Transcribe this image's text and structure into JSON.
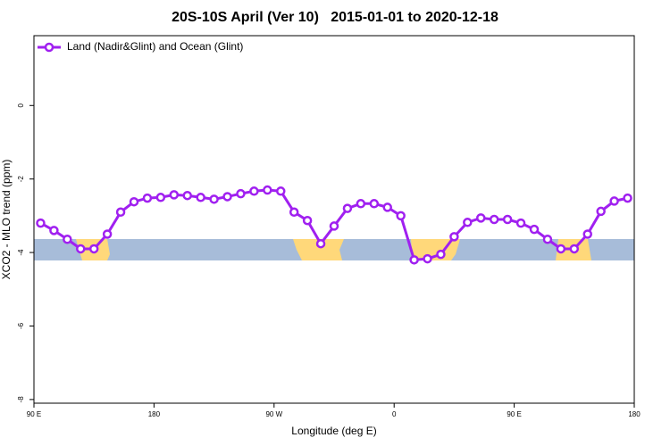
{
  "chart_data": {
    "type": "line",
    "title": "20S-10S April (Ver 10)   2015-01-01 to 2020-12-18",
    "xlabel": "Longitude (deg E)",
    "ylabel": "XCO2 - MLO trend (ppm)",
    "x": [
      95,
      105,
      115,
      125,
      135,
      145,
      155,
      165,
      175,
      185,
      195,
      205,
      215,
      225,
      235,
      245,
      255,
      265,
      275,
      285,
      295,
      305,
      315,
      325,
      335,
      345,
      355,
      365,
      375,
      385,
      395,
      405,
      415,
      425,
      435,
      445,
      455,
      465,
      475,
      485,
      495,
      505,
      515,
      525,
      535
    ],
    "series": [
      {
        "name": "Land (Nadir&Glint) and Ocean (Glint)",
        "color": "#a020f0",
        "values": [
          -3.2,
          -3.4,
          -3.64,
          -3.9,
          -3.9,
          -3.5,
          -2.9,
          -2.62,
          -2.52,
          -2.5,
          -2.43,
          -2.45,
          -2.5,
          -2.55,
          -2.48,
          -2.4,
          -2.33,
          -2.3,
          -2.33,
          -2.9,
          -3.13,
          -3.76,
          -3.28,
          -2.8,
          -2.67,
          -2.67,
          -2.77,
          -3.0,
          -4.2,
          -4.17,
          -4.05,
          -3.57,
          -3.18,
          -3.06,
          -3.1,
          -3.1,
          -3.2,
          -3.37,
          -3.64,
          -3.9,
          -3.9,
          -3.5,
          -2.88,
          -2.6,
          -2.52
        ]
      }
    ],
    "xlim": [
      90,
      540
    ],
    "xticks": [
      {
        "value": 90,
        "label": "90 E"
      },
      180,
      {
        "value": 270,
        "label": "90 W"
      },
      {
        "value": 360,
        "label": "0"
      },
      {
        "value": 450,
        "label": "90 E"
      },
      {
        "value": 540,
        "label": "180"
      }
    ],
    "ylim": [
      -8.1,
      1.9
    ],
    "yticks": [
      0,
      -2,
      -4,
      -6,
      -8
    ],
    "legend": "top-left"
  }
}
